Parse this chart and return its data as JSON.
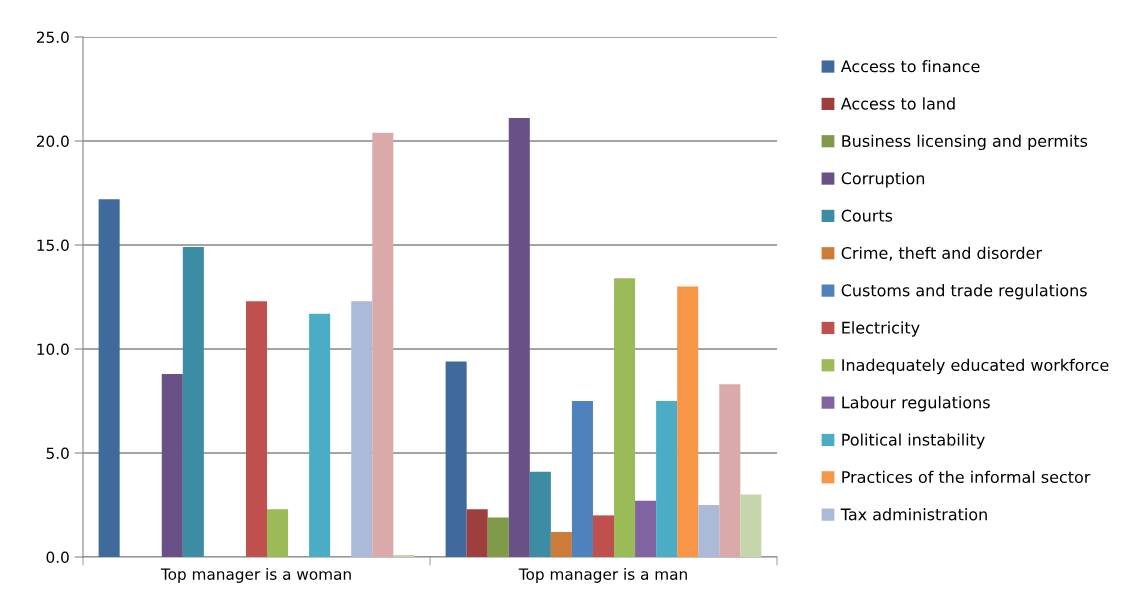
{
  "chart_data": {
    "type": "bar",
    "categories": [
      "Top manager is a woman",
      "Top manager is a man"
    ],
    "series": [
      {
        "name": "Access to finance",
        "color": "#40699c",
        "values": [
          17.2,
          9.4
        ]
      },
      {
        "name": "Access to land",
        "color": "#9e3f3d",
        "values": [
          0,
          2.3
        ]
      },
      {
        "name": "Business licensing and permits",
        "color": "#7f9a48",
        "values": [
          0,
          1.9
        ]
      },
      {
        "name": "Corruption",
        "color": "#695185",
        "values": [
          8.8,
          21.1
        ]
      },
      {
        "name": "Courts",
        "color": "#3c8da3",
        "values": [
          14.9,
          4.1
        ]
      },
      {
        "name": "Crime, theft and disorder",
        "color": "#cc7b38",
        "values": [
          0,
          1.2
        ]
      },
      {
        "name": "Customs and trade regulations",
        "color": "#4f81bd",
        "values": [
          0,
          7.5
        ]
      },
      {
        "name": "Electricity",
        "color": "#c0504d",
        "values": [
          12.3,
          2.0
        ]
      },
      {
        "name": "Inadequately educated workforce",
        "color": "#9bbb59",
        "values": [
          2.3,
          13.4
        ]
      },
      {
        "name": "Labour regulations",
        "color": "#8064a2",
        "values": [
          0,
          2.7
        ]
      },
      {
        "name": "Political instability",
        "color": "#4bacc6",
        "values": [
          11.7,
          7.5
        ]
      },
      {
        "name": "Practices of the informal sector",
        "color": "#f79646",
        "values": [
          0,
          13.0
        ]
      },
      {
        "name": "Tax administration",
        "color": "#aabad7",
        "values": [
          12.3,
          2.5
        ]
      },
      {
        "color": "#d9aaa9",
        "values": [
          20.4,
          8.3
        ]
      },
      {
        "color": "#c6d6ac",
        "values": [
          0.1,
          3.0
        ]
      }
    ],
    "ylim": [
      0,
      25
    ],
    "yticks": [
      {
        "value": 0,
        "label": "0.0"
      },
      {
        "value": 5,
        "label": "5.0"
      },
      {
        "value": 10,
        "label": "10.0"
      },
      {
        "value": 15,
        "label": "15.0"
      },
      {
        "value": 20,
        "label": "20.0"
      },
      {
        "value": 25,
        "label": "25.0"
      }
    ],
    "grid": "y",
    "legend": "right"
  }
}
